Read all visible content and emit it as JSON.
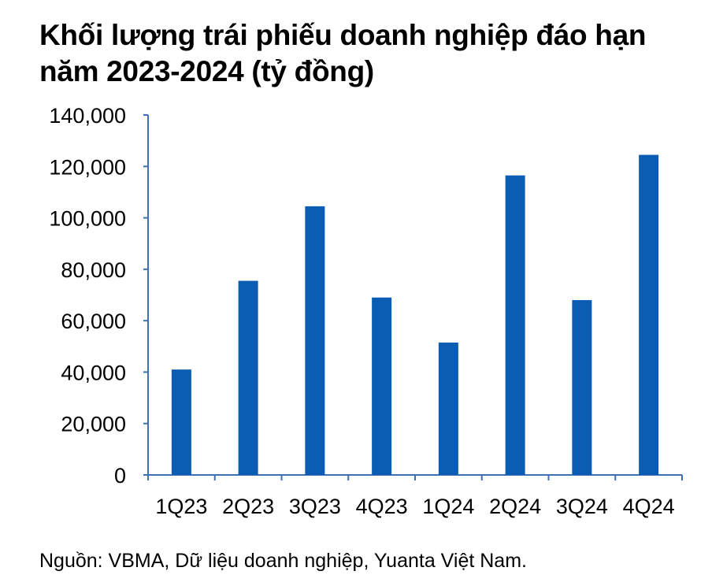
{
  "title": "Khối lượng trái phiếu doanh nghiệp đáo hạn năm 2023-2024 (tỷ đồng)",
  "source": "Nguồn: VBMA, Dữ liệu doanh nghiệp, Yuanta Việt Nam.",
  "colors": {
    "bar": "#0A5DB3",
    "axis": "#3F6FB5"
  },
  "chart_data": {
    "type": "bar",
    "title": "Khối lượng trái phiếu doanh nghiệp đáo hạn năm 2023-2024 (tỷ đồng)",
    "categories": [
      "1Q23",
      "2Q23",
      "3Q23",
      "4Q23",
      "1Q24",
      "2Q24",
      "3Q24",
      "4Q24"
    ],
    "values": [
      41000,
      75500,
      104500,
      69000,
      51500,
      116500,
      68000,
      124500
    ],
    "ylim": [
      0,
      140000
    ],
    "yticks": [
      0,
      20000,
      40000,
      60000,
      80000,
      100000,
      120000,
      140000
    ],
    "ytick_labels": [
      "0",
      "20,000",
      "40,000",
      "60,000",
      "80,000",
      "100,000",
      "120,000",
      "140,000"
    ],
    "xlabel": "",
    "ylabel": "",
    "grid": false,
    "legend": "none"
  }
}
